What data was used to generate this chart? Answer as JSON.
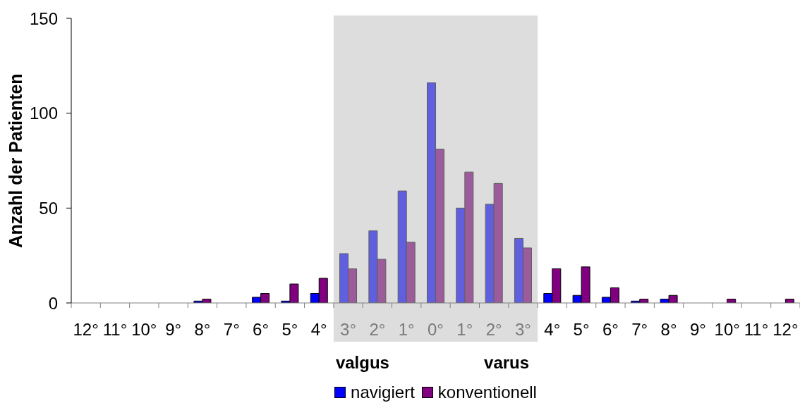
{
  "chart_data": {
    "type": "bar",
    "ylabel": "Anzahl der Patienten",
    "x": [
      -12,
      -11,
      -10,
      -9,
      -8,
      -7,
      -6,
      -5,
      -4,
      -3,
      -2,
      -1,
      0,
      1,
      2,
      3,
      4,
      5,
      6,
      7,
      8,
      9,
      10,
      11,
      12
    ],
    "xlim": [
      -12.5,
      12.5
    ],
    "xticks": [
      {
        "value": -12,
        "label": "12°"
      },
      {
        "value": -11,
        "label": "11°"
      },
      {
        "value": -10,
        "label": "10°"
      },
      {
        "value": -9,
        "label": "9°"
      },
      {
        "value": -8,
        "label": "8°"
      },
      {
        "value": -7,
        "label": "7°"
      },
      {
        "value": -6,
        "label": "6°"
      },
      {
        "value": -5,
        "label": "5°"
      },
      {
        "value": -4,
        "label": "4°"
      },
      {
        "value": -3,
        "label": "3°"
      },
      {
        "value": -2,
        "label": "2°"
      },
      {
        "value": -1,
        "label": "1°"
      },
      {
        "value": 0,
        "label": "0°"
      },
      {
        "value": 1,
        "label": "1°"
      },
      {
        "value": 2,
        "label": "2°"
      },
      {
        "value": 3,
        "label": "3°"
      },
      {
        "value": 4,
        "label": "4°"
      },
      {
        "value": 5,
        "label": "5°"
      },
      {
        "value": 6,
        "label": "6°"
      },
      {
        "value": 7,
        "label": "7°"
      },
      {
        "value": 8,
        "label": "8°"
      },
      {
        "value": 9,
        "label": "9°"
      },
      {
        "value": 10,
        "label": "10°"
      },
      {
        "value": 11,
        "label": "11°"
      },
      {
        "value": 12,
        "label": "12°"
      }
    ],
    "series": [
      {
        "name": "navigiert",
        "color": "#0000ff",
        "colors": [
          "#0000ff",
          "#0000ff",
          "#0000ff",
          "#0000ff",
          "#0000ff",
          "#0000ff",
          "#0000ff",
          "#0000ff",
          "#0000ff",
          "#5f5fdf",
          "#5f5fdf",
          "#5f5fdf",
          "#5f5fdf",
          "#5f5fdf",
          "#5f5fdf",
          "#5f5fdf",
          "#0000ff",
          "#0000ff",
          "#0000ff",
          "#0000ff",
          "#0000ff",
          "#0000ff",
          "#0000ff",
          "#0000ff",
          "#0000ff"
        ],
        "values": [
          0,
          0,
          0,
          0,
          1,
          0,
          3,
          1,
          5,
          26,
          38,
          59,
          116,
          50,
          52,
          34,
          5,
          4,
          3,
          1,
          2,
          0,
          0,
          0,
          0
        ]
      },
      {
        "name": "konventionell",
        "color": "#800080",
        "colors": [
          "#800080",
          "#800080",
          "#800080",
          "#800080",
          "#800080",
          "#800080",
          "#800080",
          "#800080",
          "#800080",
          "#9c5c9c",
          "#9c5c9c",
          "#9c5c9c",
          "#9c5c9c",
          "#9c5c9c",
          "#9c5c9c",
          "#9c5c9c",
          "#800080",
          "#800080",
          "#800080",
          "#800080",
          "#800080",
          "#800080",
          "#800080",
          "#800080",
          "#800080"
        ],
        "values": [
          0,
          0,
          0,
          0,
          2,
          0,
          5,
          10,
          13,
          18,
          23,
          32,
          81,
          69,
          63,
          29,
          18,
          19,
          8,
          2,
          4,
          0,
          2,
          0,
          2
        ]
      }
    ],
    "ylim": [
      0,
      150
    ],
    "yticks": [
      0,
      50,
      100,
      150
    ],
    "bands": [
      {
        "axis": "x",
        "from": -3.5,
        "to": 3.5,
        "color": "#dddddd"
      }
    ],
    "annotations": [
      "valgus",
      "varus"
    ],
    "legend": "bottom"
  }
}
